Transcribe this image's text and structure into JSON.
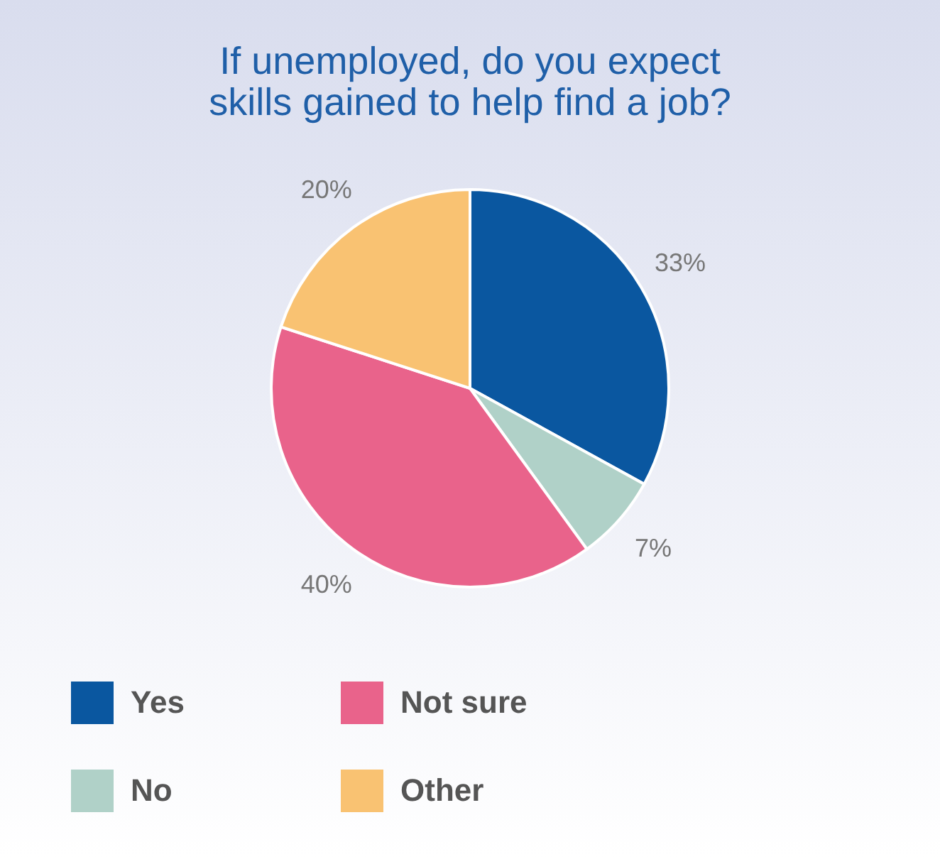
{
  "chart_data": {
    "type": "pie",
    "title": "If unemployed, do you expect skills gained to help find a job?",
    "categories": [
      "Yes",
      "No",
      "Not sure",
      "Other"
    ],
    "values": [
      33,
      7,
      40,
      20
    ],
    "colors": [
      "#0a57a0",
      "#b0d1c8",
      "#e9638b",
      "#f9c272"
    ],
    "value_labels": [
      "33%",
      "7%",
      "40%",
      "20%"
    ],
    "legend": "bottom"
  }
}
